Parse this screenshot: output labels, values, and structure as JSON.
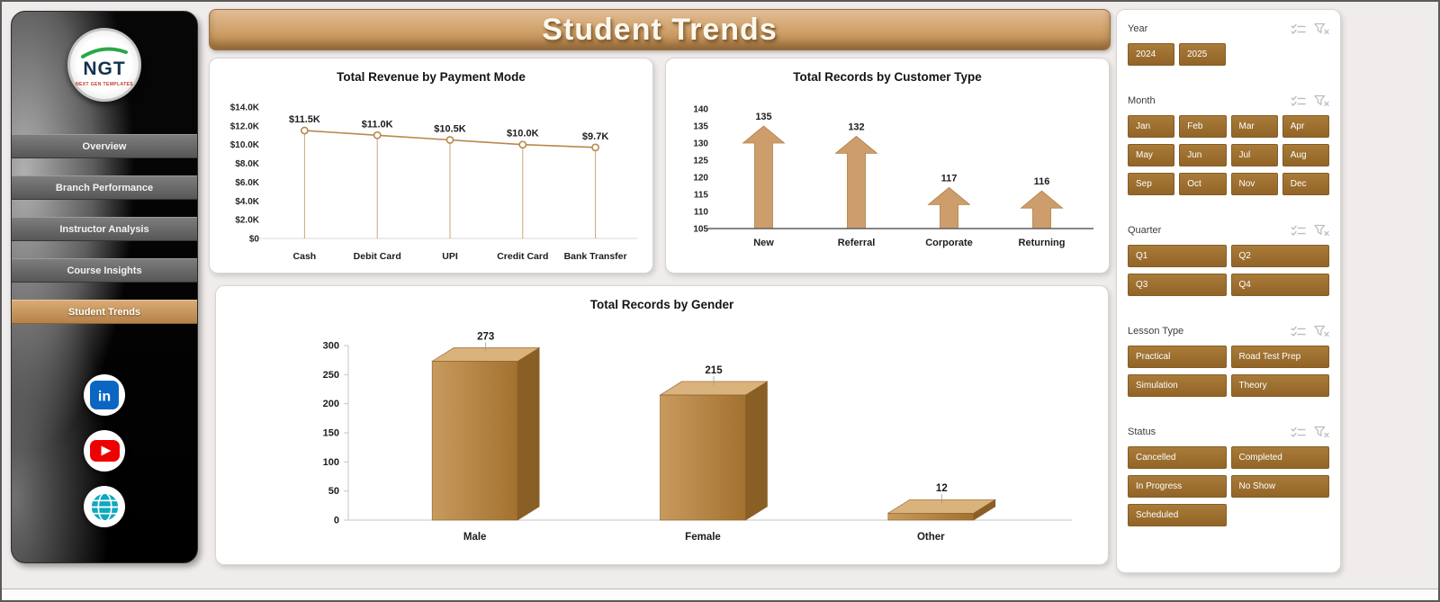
{
  "title": "Student Trends",
  "sidebar": {
    "logo_text": "NGT",
    "logo_sub": "NEXT GEN TEMPLATES",
    "items": [
      {
        "label": "Overview",
        "active": false
      },
      {
        "label": "Branch Performance",
        "active": false
      },
      {
        "label": "Instructor Analysis",
        "active": false
      },
      {
        "label": "Course Insights",
        "active": false
      },
      {
        "label": "Student Trends",
        "active": true
      }
    ],
    "social_icons": [
      "linkedin-icon",
      "youtube-icon",
      "website-globe-icon"
    ]
  },
  "colors": {
    "banner_tan": "#cfa069",
    "slicer_brown": "#9c6e2e",
    "line_series": "#b9884c",
    "arrow_fill": "#cd9d6b",
    "arrow_stroke": "#b07f46",
    "bar_front_light": "#c79a5e",
    "bar_front_dark": "#a3712f",
    "bar_top": "#dab27c",
    "bar_side": "#8a5f26"
  },
  "chart_data": [
    {
      "type": "line",
      "variant": "markers-with-droplines",
      "title": "Total Revenue by Payment Mode",
      "categories": [
        "Cash",
        "Debit Card",
        "UPI",
        "Credit Card",
        "Bank Transfer"
      ],
      "values": [
        11500,
        11000,
        10500,
        10000,
        9700
      ],
      "data_labels": [
        "$11.5K",
        "$11.0K",
        "$10.5K",
        "$10.0K",
        "$9.7K"
      ],
      "ylim": [
        0,
        14000
      ],
      "yticks": [
        0,
        2000,
        4000,
        6000,
        8000,
        10000,
        12000,
        14000
      ],
      "ytick_labels": [
        "$0",
        "$2.0K",
        "$4.0K",
        "$6.0K",
        "$8.0K",
        "$10.0K",
        "$12.0K",
        "$14.0K"
      ],
      "grid": false,
      "legend": false
    },
    {
      "type": "bar",
      "variant": "up-arrow",
      "title": "Total Records by Customer Type",
      "categories": [
        "New",
        "Referral",
        "Corporate",
        "Returning"
      ],
      "values": [
        135,
        132,
        117,
        116
      ],
      "ylim": [
        105,
        140
      ],
      "yticks": [
        105,
        110,
        115,
        120,
        125,
        130,
        135,
        140
      ],
      "grid": false,
      "legend": false
    },
    {
      "type": "bar",
      "variant": "3d",
      "title": "Total Records by Gender",
      "categories": [
        "Male",
        "Female",
        "Other"
      ],
      "values": [
        273,
        215,
        12
      ],
      "ylim": [
        0,
        300
      ],
      "yticks": [
        0,
        50,
        100,
        150,
        200,
        250,
        300
      ],
      "grid": false,
      "legend": false
    }
  ],
  "slicers": [
    {
      "title": "Year",
      "cols": 2,
      "compact": true,
      "options": [
        "2024",
        "2025"
      ]
    },
    {
      "title": "Month",
      "cols": 4,
      "options": [
        "Jan",
        "Feb",
        "Mar",
        "Apr",
        "May",
        "Jun",
        "Jul",
        "Aug",
        "Sep",
        "Oct",
        "Nov",
        "Dec"
      ]
    },
    {
      "title": "Quarter",
      "cols": 2,
      "options": [
        "Q1",
        "Q2",
        "Q3",
        "Q4"
      ]
    },
    {
      "title": "Lesson Type",
      "cols": 2,
      "options": [
        "Practical",
        "Road Test Prep",
        "Simulation",
        "Theory"
      ]
    },
    {
      "title": "Status",
      "cols": 2,
      "options": [
        "Cancelled",
        "Completed",
        "In Progress",
        "No Show",
        "Scheduled"
      ]
    }
  ]
}
